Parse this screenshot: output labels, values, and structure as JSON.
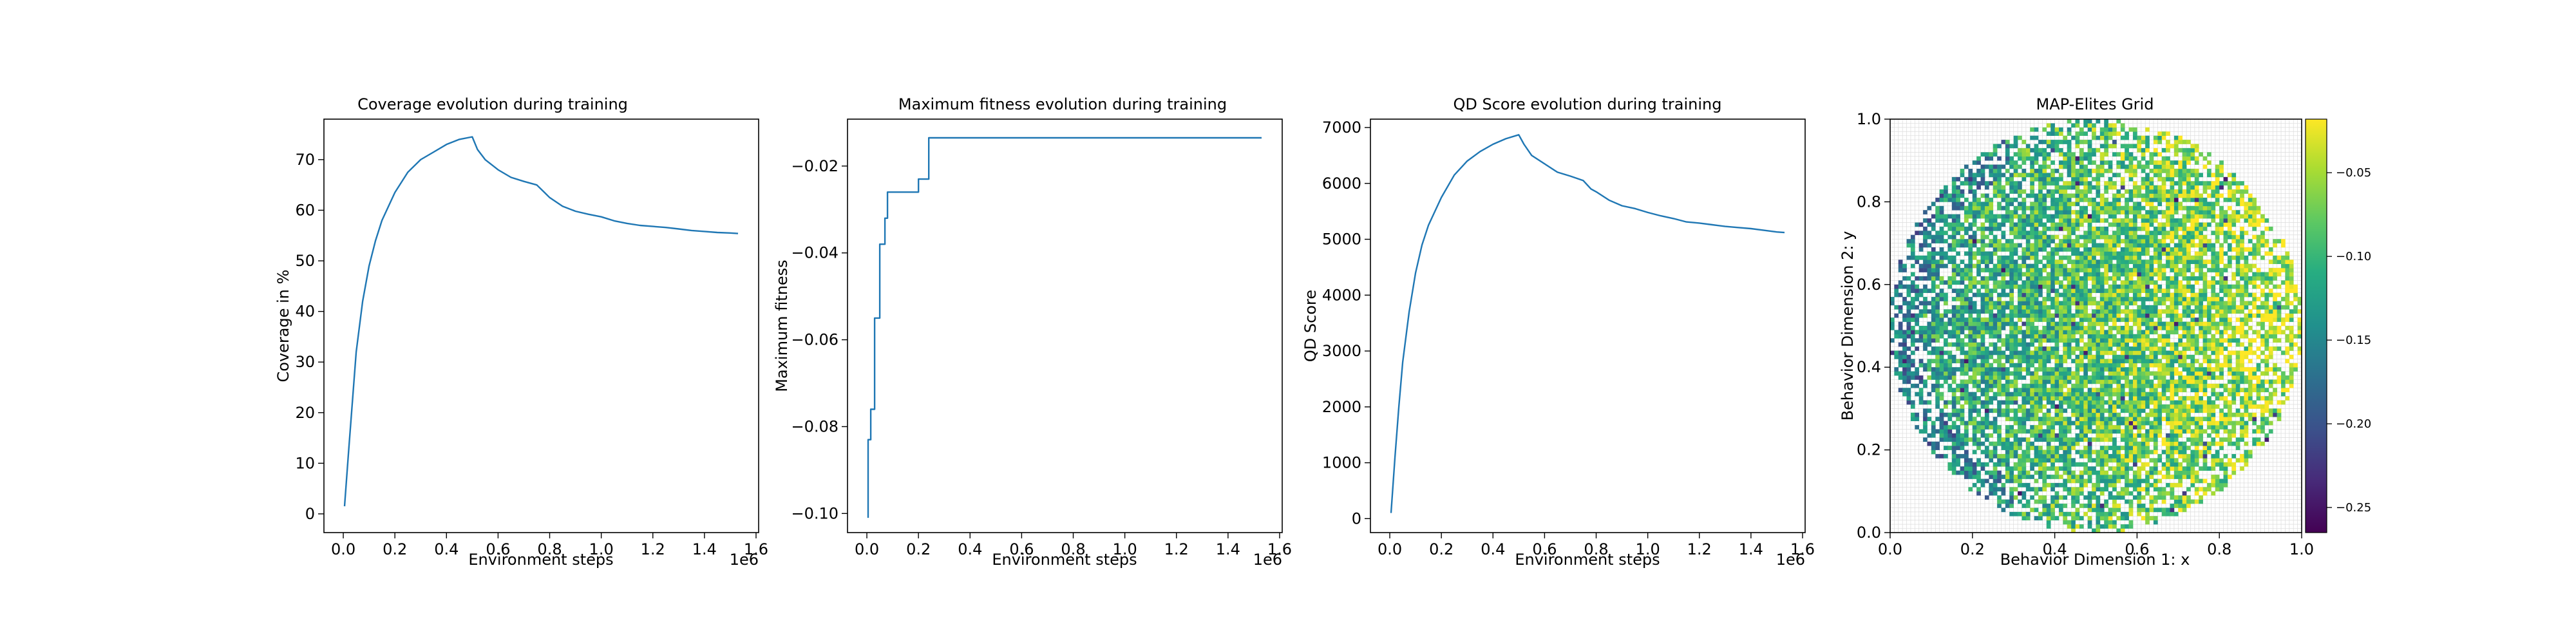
{
  "figure": {
    "background": "#ffffff",
    "line_color": "#1f77b4"
  },
  "chart_data": [
    {
      "type": "line",
      "title": "Coverage evolution during training",
      "xlabel": "Environment steps",
      "ylabel": "Coverage in %",
      "x_offset_label": "1e6",
      "xlim": [
        -0.075,
        1.61
      ],
      "ylim": [
        -3.7,
        78.0
      ],
      "xticks": [
        0.0,
        0.2,
        0.4,
        0.6,
        0.8,
        1.0,
        1.2,
        1.4,
        1.6
      ],
      "xtick_labels": [
        "0.0",
        "0.2",
        "0.4",
        "0.6",
        "0.8",
        "1.0",
        "1.2",
        "1.4",
        "1.6"
      ],
      "yticks": [
        0,
        10,
        20,
        30,
        40,
        50,
        60,
        70
      ],
      "ytick_labels": [
        "0",
        "10",
        "20",
        "30",
        "40",
        "50",
        "60",
        "70"
      ],
      "series": [
        {
          "x": [
            0.005,
            0.02,
            0.035,
            0.05,
            0.075,
            0.1,
            0.125,
            0.15,
            0.2,
            0.25,
            0.3,
            0.35,
            0.4,
            0.45,
            0.5,
            0.52,
            0.55,
            0.6,
            0.65,
            0.7,
            0.75,
            0.78,
            0.8,
            0.85,
            0.9,
            0.95,
            1.0,
            1.05,
            1.1,
            1.15,
            1.2,
            1.25,
            1.3,
            1.35,
            1.4,
            1.45,
            1.5,
            1.53
          ],
          "y": [
            1.5,
            12,
            22,
            32,
            42,
            49,
            54,
            58,
            63.5,
            67.5,
            70,
            71.5,
            73,
            74,
            74.5,
            72,
            70,
            68,
            66.5,
            65.7,
            65,
            63.5,
            62.5,
            60.8,
            59.8,
            59.2,
            58.7,
            57.9,
            57.4,
            57.0,
            56.8,
            56.6,
            56.3,
            56.0,
            55.8,
            55.6,
            55.5,
            55.4
          ]
        }
      ]
    },
    {
      "type": "line",
      "title": "Maximum fitness evolution during training",
      "xlabel": "Environment steps",
      "ylabel": "Maximum fitness",
      "x_offset_label": "1e6",
      "xlim": [
        -0.075,
        1.61
      ],
      "ylim": [
        -0.1044,
        -0.0092
      ],
      "xticks": [
        0.0,
        0.2,
        0.4,
        0.6,
        0.8,
        1.0,
        1.2,
        1.4,
        1.6
      ],
      "xtick_labels": [
        "0.0",
        "0.2",
        "0.4",
        "0.6",
        "0.8",
        "1.0",
        "1.2",
        "1.4",
        "1.6"
      ],
      "yticks": [
        -0.1,
        -0.08,
        -0.06,
        -0.04,
        -0.02
      ],
      "ytick_labels": [
        "−0.10",
        "−0.08",
        "−0.06",
        "−0.04",
        "−0.02"
      ],
      "series": [
        {
          "x": [
            0.005,
            0.005,
            0.015,
            0.015,
            0.03,
            0.03,
            0.05,
            0.05,
            0.07,
            0.07,
            0.08,
            0.08,
            0.1,
            0.1,
            0.2,
            0.2,
            0.24,
            0.24,
            1.53
          ],
          "y": [
            -0.101,
            -0.083,
            -0.083,
            -0.076,
            -0.076,
            -0.055,
            -0.055,
            -0.038,
            -0.038,
            -0.032,
            -0.032,
            -0.026,
            -0.026,
            -0.026,
            -0.026,
            -0.023,
            -0.023,
            -0.0135,
            -0.0135
          ]
        }
      ]
    },
    {
      "type": "line",
      "title": "QD Score evolution during training",
      "xlabel": "Environment steps",
      "ylabel": "QD Score",
      "x_offset_label": "1e6",
      "xlim": [
        -0.075,
        1.61
      ],
      "ylim": [
        -250,
        7150
      ],
      "xticks": [
        0.0,
        0.2,
        0.4,
        0.6,
        0.8,
        1.0,
        1.2,
        1.4,
        1.6
      ],
      "xtick_labels": [
        "0.0",
        "0.2",
        "0.4",
        "0.6",
        "0.8",
        "1.0",
        "1.2",
        "1.4",
        "1.6"
      ],
      "yticks": [
        0,
        1000,
        2000,
        3000,
        4000,
        5000,
        6000,
        7000
      ],
      "ytick_labels": [
        "0",
        "1000",
        "2000",
        "3000",
        "4000",
        "5000",
        "6000",
        "7000"
      ],
      "series": [
        {
          "x": [
            0.005,
            0.02,
            0.035,
            0.05,
            0.075,
            0.1,
            0.125,
            0.15,
            0.2,
            0.25,
            0.3,
            0.35,
            0.4,
            0.45,
            0.5,
            0.52,
            0.55,
            0.6,
            0.65,
            0.7,
            0.75,
            0.78,
            0.8,
            0.85,
            0.9,
            0.95,
            1.0,
            1.05,
            1.1,
            1.15,
            1.2,
            1.25,
            1.3,
            1.35,
            1.4,
            1.45,
            1.5,
            1.53
          ],
          "y": [
            100,
            1100,
            2000,
            2800,
            3700,
            4400,
            4900,
            5250,
            5750,
            6150,
            6400,
            6570,
            6700,
            6800,
            6870,
            6700,
            6500,
            6350,
            6200,
            6130,
            6050,
            5900,
            5850,
            5700,
            5600,
            5550,
            5480,
            5420,
            5370,
            5310,
            5290,
            5260,
            5230,
            5210,
            5190,
            5160,
            5130,
            5120
          ]
        }
      ]
    },
    {
      "type": "heatmap",
      "title": "MAP-Elites Grid",
      "xlabel": "Behavior Dimension 1: x",
      "ylabel": "Behavior Dimension 2: y",
      "xlim": [
        0.0,
        1.0
      ],
      "ylim": [
        0.0,
        1.0
      ],
      "xticks": [
        0.0,
        0.2,
        0.4,
        0.6,
        0.8,
        1.0
      ],
      "xtick_labels": [
        "0.0",
        "0.2",
        "0.4",
        "0.6",
        "0.8",
        "1.0"
      ],
      "yticks": [
        0.0,
        0.2,
        0.4,
        0.6,
        0.8,
        1.0
      ],
      "ytick_labels": [
        "0.0",
        "0.2",
        "0.4",
        "0.6",
        "0.8",
        "1.0"
      ],
      "grid_cells": 100,
      "grid": true,
      "filled_region": {
        "shape": "disk",
        "center": [
          0.5,
          0.5
        ],
        "radius": 0.5
      },
      "colormap": "viridis",
      "colorbar": {
        "vmin": -0.265,
        "vmax": -0.018,
        "ticks": [
          -0.25,
          -0.2,
          -0.15,
          -0.1,
          -0.05
        ],
        "tick_labels": [
          "−0.25",
          "−0.20",
          "−0.15",
          "−0.10",
          "−0.05"
        ]
      }
    }
  ]
}
